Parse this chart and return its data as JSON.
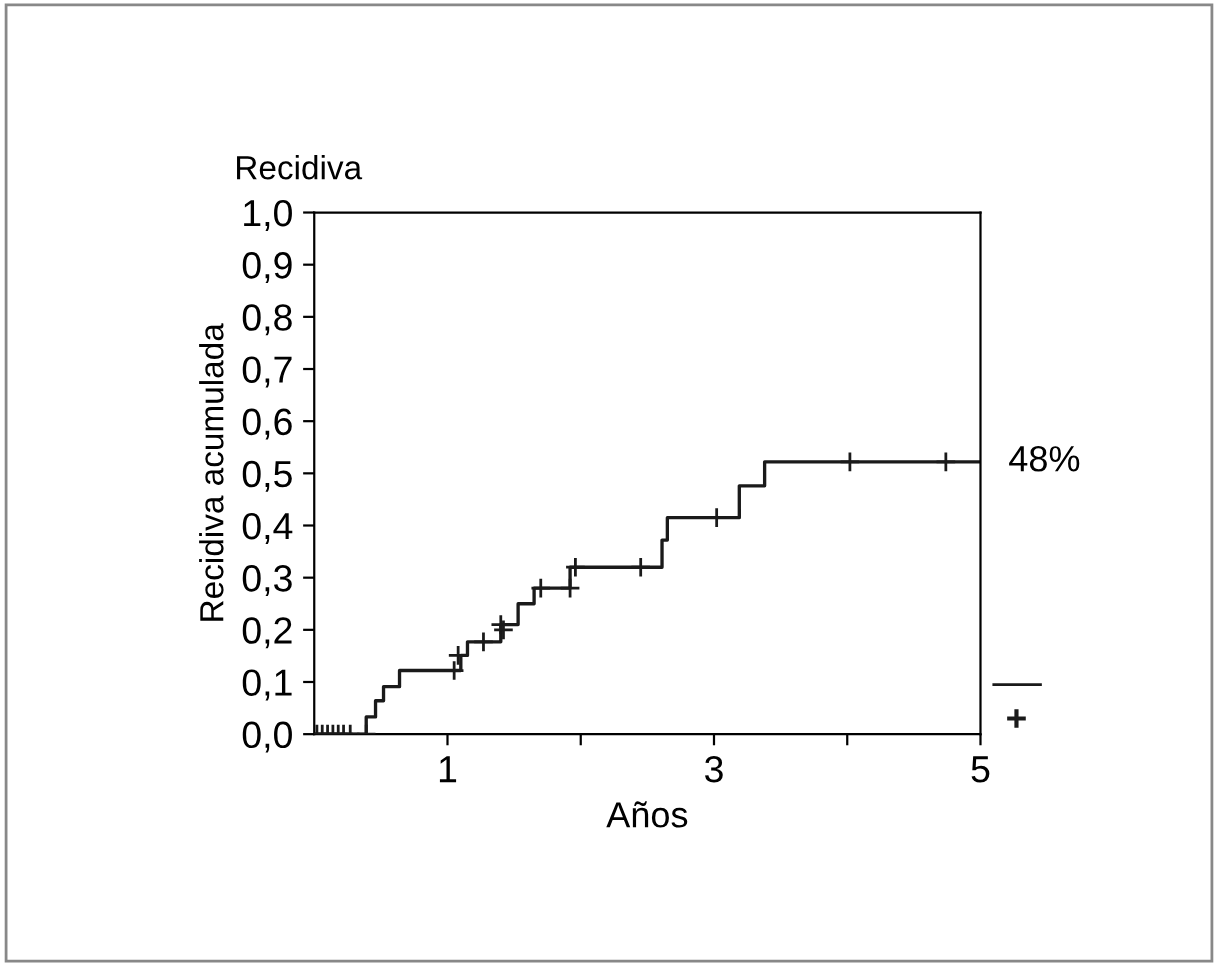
{
  "chart_data": {
    "type": "step",
    "title": "Recidiva",
    "xlabel": "Años",
    "ylabel": "Recidiva acumulada",
    "series": [
      {
        "color": "#1a1a1a",
        "x": [
          0,
          0.39,
          0.46,
          0.52,
          0.64,
          1.1,
          1.15,
          1.4,
          1.53,
          1.65,
          1.92,
          2.61,
          2.65,
          3.19,
          3.38,
          5
        ],
        "values": [
          0,
          0.033,
          0.064,
          0.091,
          0.122,
          0.151,
          0.177,
          0.21,
          0.25,
          0.28,
          0.32,
          0.372,
          0.415,
          0.476,
          0.522,
          0.522
        ]
      },
      {
        "type": "scatter",
        "color": "#1a1a1a",
        "marker": "cross",
        "x": [
          0.02,
          0.06,
          0.1,
          0.14,
          0.18,
          0.22,
          0.27,
          0.39,
          1.05,
          1.08,
          1.27,
          1.4,
          1.42,
          1.7,
          1.92,
          1.96,
          2.45,
          3.02,
          4.02,
          4.74
        ],
        "values": [
          0,
          0,
          0,
          0,
          0,
          0,
          0,
          0,
          0.122,
          0.151,
          0.177,
          0.21,
          0.2,
          0.28,
          0.28,
          0.32,
          0.32,
          0.415,
          0.522,
          0.522
        ]
      }
    ],
    "annotations": [
      {
        "text": "48%",
        "x": 5,
        "y": 0.522
      }
    ],
    "xlim": [
      0,
      5
    ],
    "xticks": [
      1,
      {
        "value": 2,
        "label": null
      },
      3,
      {
        "value": 4,
        "label": null
      },
      5
    ],
    "ylim": [
      0,
      1.0
    ],
    "yticks": [
      {
        "value": 0,
        "label": "0,0"
      },
      {
        "value": 0.1,
        "label": "0,1"
      },
      {
        "value": 0.2,
        "label": "0,2"
      },
      {
        "value": 0.3,
        "label": "0,3"
      },
      {
        "value": 0.4,
        "label": "0,4"
      },
      {
        "value": 0.5,
        "label": "0,5"
      },
      {
        "value": 0.6,
        "label": "0,6"
      },
      {
        "value": 0.7,
        "label": "0,7"
      },
      {
        "value": 0.8,
        "label": "0,8"
      },
      {
        "value": 0.9,
        "label": "0,9"
      },
      {
        "value": 1.0,
        "label": "1,0"
      }
    ],
    "grid": false,
    "legend": false
  }
}
